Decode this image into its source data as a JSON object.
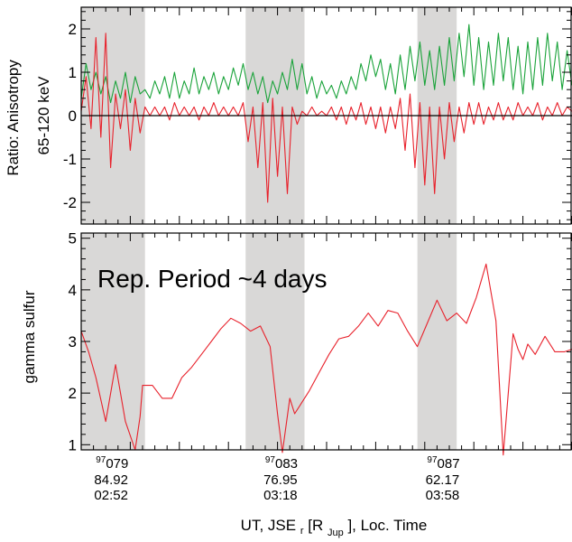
{
  "colors": {
    "green": "#1aa33a",
    "red": "#e8212b",
    "shade": "#d9d8d7",
    "axis": "#000000"
  },
  "chart_data": [
    {
      "type": "line",
      "ylabel_lines": [
        "Ratio: Anisotropy",
        "65-120 keV"
      ],
      "ylim": [
        -2.5,
        2.5
      ],
      "yticks": [
        -2,
        -1,
        0,
        1,
        2
      ],
      "ytick_labels": [
        "-2",
        "-1",
        "0",
        "1",
        "2"
      ],
      "xlim": [
        0,
        100
      ],
      "zero_line": true,
      "grid": false,
      "shaded_intervals": [
        [
          0,
          13.0
        ],
        [
          33.5,
          45.5
        ],
        [
          68.5,
          76.5
        ]
      ],
      "series": [
        {
          "color_key": "green",
          "x": [
            0,
            1,
            2,
            3,
            4,
            5,
            6,
            7,
            8,
            9,
            10,
            11,
            12,
            13,
            14,
            15,
            16,
            17,
            18,
            19,
            20,
            21,
            22,
            23,
            24,
            25,
            26,
            27,
            28,
            29,
            30,
            31,
            32,
            33,
            34,
            35,
            36,
            37,
            38,
            39,
            40,
            41,
            42,
            43,
            44,
            45,
            46,
            47,
            48,
            49,
            50,
            51,
            52,
            53,
            54,
            55,
            56,
            57,
            58,
            59,
            60,
            61,
            62,
            63,
            64,
            65,
            66,
            67,
            68,
            69,
            70,
            71,
            72,
            73,
            74,
            75,
            76,
            77,
            78,
            79,
            80,
            81,
            82,
            83,
            84,
            85,
            86,
            87,
            88,
            89,
            90,
            91,
            92,
            93,
            94,
            95,
            96,
            97,
            98,
            99,
            100
          ],
          "values": [
            0.4,
            1.2,
            0.6,
            1.0,
            0.5,
            0.9,
            0.3,
            0.8,
            0.4,
            1.0,
            0.3,
            0.9,
            0.5,
            0.6,
            0.4,
            0.8,
            0.5,
            0.9,
            0.4,
            1.0,
            0.4,
            0.8,
            0.5,
            1.1,
            0.5,
            0.9,
            0.6,
            1.0,
            0.5,
            0.9,
            0.6,
            1.1,
            0.7,
            1.2,
            0.6,
            1.0,
            0.5,
            0.9,
            0.3,
            0.8,
            0.5,
            1.0,
            0.6,
            1.3,
            0.6,
            1.2,
            0.5,
            0.9,
            0.4,
            0.8,
            0.5,
            0.7,
            0.4,
            0.8,
            0.5,
            0.9,
            0.6,
            1.2,
            0.8,
            1.4,
            0.9,
            1.3,
            0.6,
            1.2,
            0.5,
            1.4,
            0.6,
            1.6,
            0.8,
            1.7,
            0.7,
            1.5,
            0.6,
            1.6,
            0.7,
            1.8,
            0.8,
            1.9,
            0.9,
            2.1,
            0.7,
            1.8,
            0.6,
            1.7,
            0.7,
            1.9,
            0.8,
            1.8,
            0.6,
            1.6,
            0.5,
            1.7,
            0.6,
            1.8,
            0.7,
            1.9,
            0.8,
            1.7,
            0.6,
            1.5,
            0.7
          ]
        },
        {
          "color_key": "red",
          "x": [
            0,
            1,
            2,
            3,
            4,
            5,
            6,
            7,
            8,
            9,
            10,
            11,
            12,
            13,
            14,
            15,
            16,
            17,
            18,
            19,
            20,
            21,
            22,
            23,
            24,
            25,
            26,
            27,
            28,
            29,
            30,
            31,
            32,
            33,
            34,
            35,
            36,
            37,
            38,
            39,
            40,
            41,
            42,
            43,
            44,
            45,
            46,
            47,
            48,
            49,
            50,
            51,
            52,
            53,
            54,
            55,
            56,
            57,
            58,
            59,
            60,
            61,
            62,
            63,
            64,
            65,
            66,
            67,
            68,
            69,
            70,
            71,
            72,
            73,
            74,
            75,
            76,
            77,
            78,
            79,
            80,
            81,
            82,
            83,
            84,
            85,
            86,
            87,
            88,
            89,
            90,
            91,
            92,
            93,
            94,
            95,
            96,
            97,
            98,
            99,
            100
          ],
          "values": [
            0.1,
            0.9,
            -0.3,
            1.8,
            -0.5,
            1.9,
            -1.2,
            0.5,
            -0.3,
            0.6,
            -0.8,
            0.4,
            -0.4,
            0.2,
            0.0,
            0.2,
            0.0,
            0.2,
            -0.1,
            0.3,
            0.0,
            0.2,
            0.0,
            0.2,
            -0.1,
            0.2,
            0.0,
            0.3,
            0.0,
            0.2,
            0.0,
            0.2,
            0.0,
            0.3,
            -0.6,
            0.2,
            -1.2,
            0.3,
            -2.0,
            0.4,
            -1.4,
            0.2,
            -1.8,
            0.2,
            -0.2,
            0.1,
            0.0,
            0.2,
            0.0,
            0.1,
            0.0,
            0.2,
            -0.1,
            0.2,
            -0.2,
            0.2,
            -0.1,
            0.3,
            -0.2,
            0.2,
            -0.3,
            0.2,
            -0.4,
            0.2,
            -0.3,
            0.4,
            -0.8,
            0.5,
            -1.2,
            0.3,
            -1.6,
            0.2,
            -1.8,
            0.2,
            -1.0,
            0.3,
            -0.6,
            0.2,
            -0.4,
            0.3,
            -0.2,
            0.3,
            -0.2,
            0.2,
            -0.1,
            0.3,
            -0.1,
            0.2,
            -0.1,
            0.3,
            0.0,
            0.2,
            0.0,
            0.3,
            -0.1,
            0.2,
            0.0,
            0.3,
            0.0,
            0.2,
            0.1
          ]
        }
      ]
    },
    {
      "type": "line",
      "ylabel": "gamma sulfur",
      "ylim": [
        0.9,
        5.1
      ],
      "yticks": [
        1,
        2,
        3,
        4,
        5
      ],
      "ytick_labels": [
        "1",
        "2",
        "3",
        "4",
        "5"
      ],
      "xlim": [
        0,
        100
      ],
      "grid": false,
      "annotation": "Rep. Period ~4 days",
      "shaded_intervals": [
        [
          0,
          13.0
        ],
        [
          33.5,
          45.5
        ],
        [
          68.5,
          76.5
        ]
      ],
      "series": [
        {
          "color_key": "red",
          "x": [
            0,
            1.5,
            3,
            5,
            7,
            9,
            11,
            12,
            12.5,
            13.0,
            14.5,
            16.5,
            18.5,
            20.5,
            22.5,
            24.5,
            26.5,
            28.5,
            30.5,
            32.5,
            34.5,
            36.5,
            38.5,
            40.0,
            41.0,
            42.5,
            43.5,
            44.5,
            46.5,
            48.5,
            50.5,
            52.5,
            54.5,
            56.5,
            58.5,
            60.5,
            62.5,
            64.5,
            66.5,
            68.5,
            70.5,
            72.5,
            74.5,
            76.5,
            78.5,
            80.5,
            82.5,
            84.5,
            86.0,
            88.0,
            89.0,
            90.0,
            91.0,
            92.5,
            94.5,
            96.5,
            98.5,
            100
          ],
          "values": [
            3.2,
            2.8,
            2.3,
            1.45,
            2.55,
            1.45,
            0.9,
            1.55,
            2.15,
            2.15,
            2.15,
            1.9,
            1.9,
            2.3,
            2.5,
            2.75,
            3.0,
            3.25,
            3.45,
            3.35,
            3.2,
            3.3,
            2.9,
            1.6,
            0.85,
            1.9,
            1.6,
            1.75,
            2.05,
            2.4,
            2.75,
            3.05,
            3.1,
            3.3,
            3.55,
            3.3,
            3.6,
            3.55,
            3.2,
            2.9,
            3.35,
            3.8,
            3.4,
            3.55,
            3.35,
            3.85,
            4.5,
            3.4,
            0.8,
            3.15,
            2.85,
            2.65,
            2.95,
            2.75,
            3.1,
            2.8,
            2.8,
            2.85
          ]
        }
      ]
    }
  ],
  "x_ticks": [
    {
      "x": 5.0,
      "sup": "97",
      "doy": "079",
      "dist": "84.92",
      "time": "02:52"
    },
    {
      "x": 39.5,
      "sup": "97",
      "doy": "083",
      "dist": "76.95",
      "time": "03:18"
    },
    {
      "x": 72.5,
      "sup": "97",
      "doy": "087",
      "dist": "62.17",
      "time": "03:58"
    }
  ],
  "xlabel": {
    "pre": "UT, JSE",
    "sub1": "r",
    "mid": "[R",
    "sub2": "Jup",
    "post": "], Loc. Time"
  }
}
